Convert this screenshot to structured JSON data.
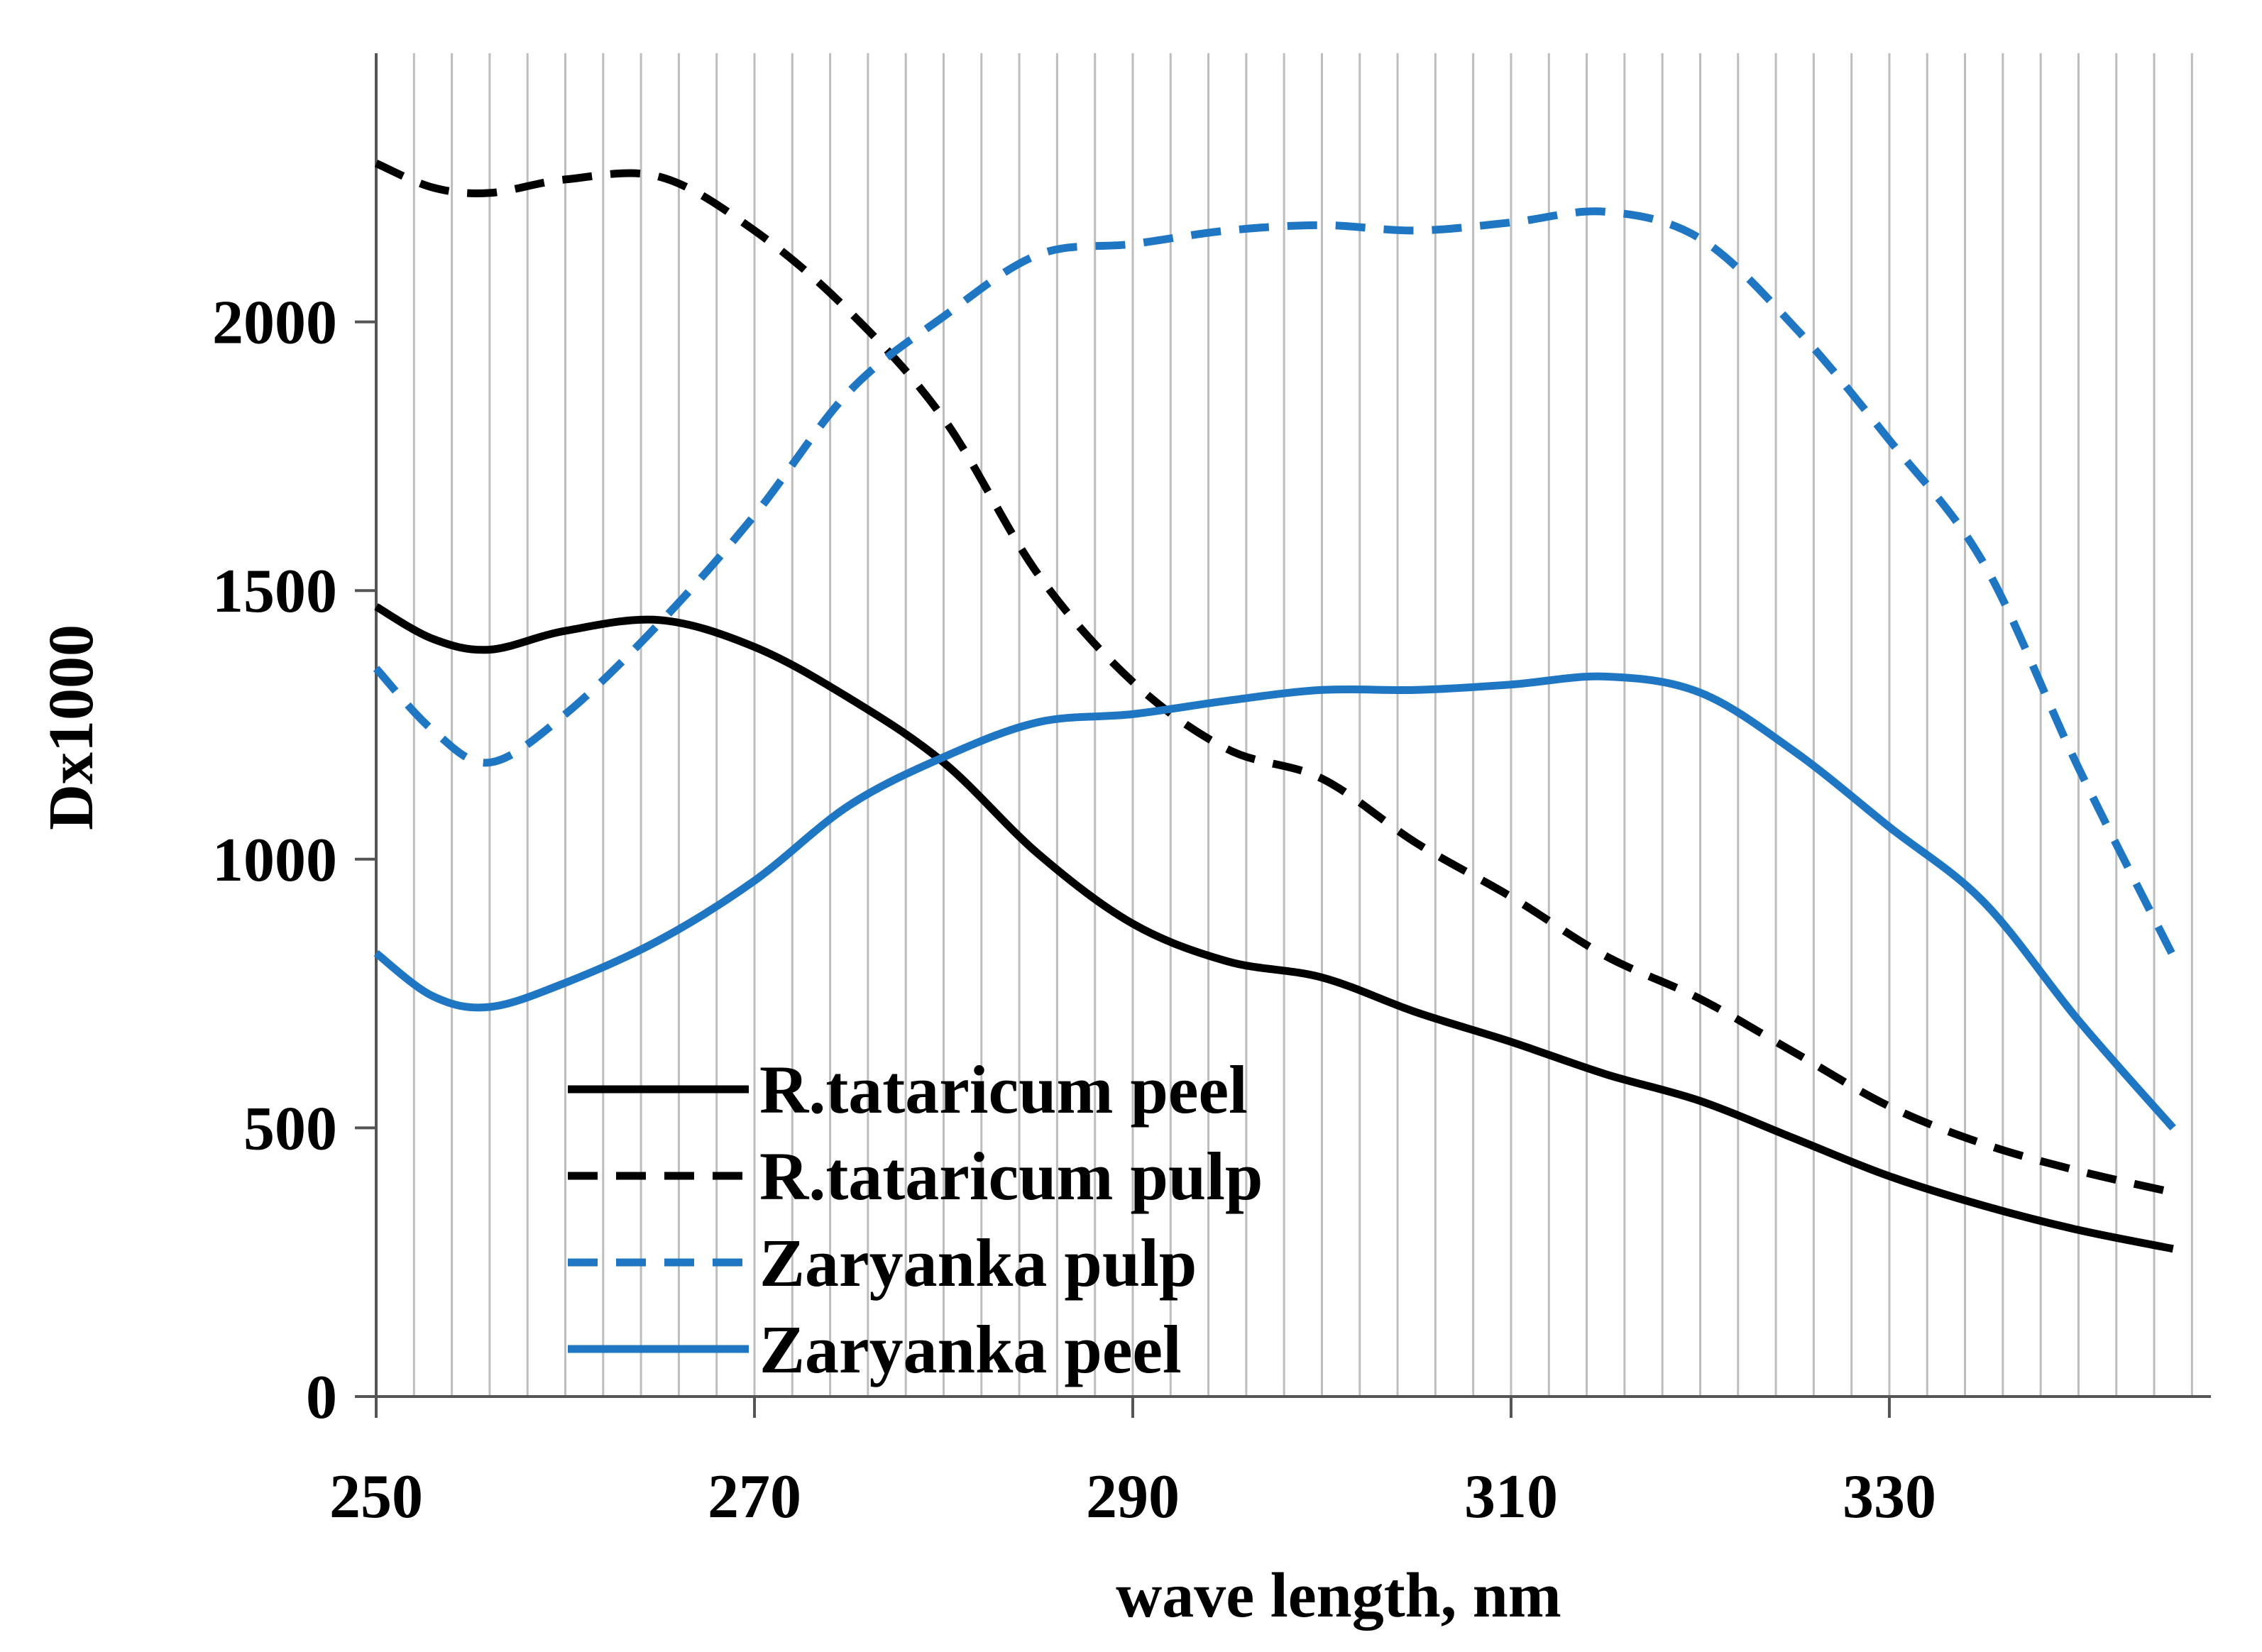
{
  "chart_data": {
    "type": "line",
    "title": "",
    "xlabel": "wave length, nm",
    "ylabel": "Dx1000",
    "xlim": [
      250,
      347
    ],
    "ylim": [
      0,
      2500
    ],
    "x_ticks": [
      250,
      270,
      290,
      310,
      330
    ],
    "y_ticks": [
      0,
      500,
      1000,
      1500,
      2000
    ],
    "vertical_grid_step": 2,
    "legend_position": "lower-left inside plot",
    "series": [
      {
        "name": "R.tataricum peel",
        "color": "#000000",
        "style": "solid",
        "points": [
          [
            250,
            1470
          ],
          [
            253,
            1410
          ],
          [
            256,
            1390
          ],
          [
            260,
            1425
          ],
          [
            265,
            1445
          ],
          [
            270,
            1395
          ],
          [
            275,
            1300
          ],
          [
            280,
            1180
          ],
          [
            285,
            1010
          ],
          [
            290,
            880
          ],
          [
            295,
            810
          ],
          [
            300,
            780
          ],
          [
            305,
            715
          ],
          [
            310,
            660
          ],
          [
            315,
            600
          ],
          [
            320,
            550
          ],
          [
            325,
            480
          ],
          [
            330,
            410
          ],
          [
            335,
            355
          ],
          [
            340,
            310
          ],
          [
            345,
            275
          ]
        ]
      },
      {
        "name": "R.tataricum pulp",
        "color": "#000000",
        "style": "dashed",
        "points": [
          [
            250,
            2295
          ],
          [
            253,
            2250
          ],
          [
            256,
            2240
          ],
          [
            260,
            2265
          ],
          [
            265,
            2270
          ],
          [
            270,
            2170
          ],
          [
            275,
            2020
          ],
          [
            280,
            1820
          ],
          [
            285,
            1530
          ],
          [
            290,
            1330
          ],
          [
            295,
            1205
          ],
          [
            300,
            1150
          ],
          [
            305,
            1030
          ],
          [
            310,
            930
          ],
          [
            315,
            820
          ],
          [
            320,
            740
          ],
          [
            325,
            640
          ],
          [
            330,
            540
          ],
          [
            335,
            470
          ],
          [
            340,
            420
          ],
          [
            345,
            380
          ]
        ]
      },
      {
        "name": "Zaryanka pulp",
        "color": "#1f77c4",
        "style": "dashed",
        "points": [
          [
            250,
            1355
          ],
          [
            253,
            1240
          ],
          [
            256,
            1180
          ],
          [
            260,
            1270
          ],
          [
            265,
            1440
          ],
          [
            270,
            1640
          ],
          [
            275,
            1870
          ],
          [
            280,
            2010
          ],
          [
            285,
            2125
          ],
          [
            290,
            2145
          ],
          [
            295,
            2170
          ],
          [
            300,
            2180
          ],
          [
            305,
            2170
          ],
          [
            310,
            2185
          ],
          [
            315,
            2205
          ],
          [
            320,
            2155
          ],
          [
            325,
            1990
          ],
          [
            330,
            1780
          ],
          [
            335,
            1550
          ],
          [
            340,
            1170
          ],
          [
            345,
            820
          ]
        ]
      },
      {
        "name": "Zaryanka peel",
        "color": "#1f77c4",
        "style": "solid",
        "points": [
          [
            250,
            825
          ],
          [
            253,
            745
          ],
          [
            256,
            725
          ],
          [
            260,
            770
          ],
          [
            265,
            850
          ],
          [
            270,
            960
          ],
          [
            275,
            1100
          ],
          [
            280,
            1190
          ],
          [
            285,
            1255
          ],
          [
            290,
            1270
          ],
          [
            295,
            1295
          ],
          [
            300,
            1315
          ],
          [
            305,
            1315
          ],
          [
            310,
            1325
          ],
          [
            315,
            1340
          ],
          [
            320,
            1310
          ],
          [
            325,
            1200
          ],
          [
            330,
            1060
          ],
          [
            335,
            920
          ],
          [
            340,
            700
          ],
          [
            345,
            500
          ]
        ]
      }
    ]
  }
}
